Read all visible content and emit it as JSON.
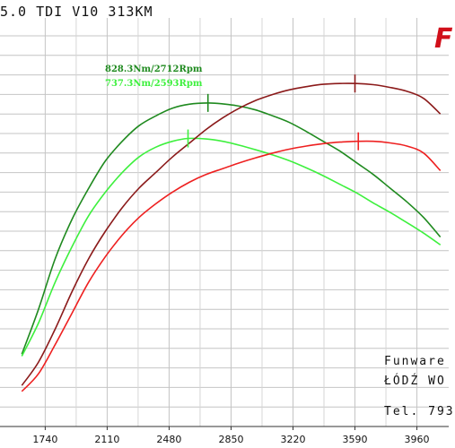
{
  "header": {
    "title": "5.0 TDI V10 313KM",
    "logo_text": "F"
  },
  "footer": {
    "company": "Funware",
    "location": "ŁÓDŹ WO",
    "phone": "Tel. 793"
  },
  "chart_data": {
    "type": "line",
    "title": "5.0 TDI V10 313KM",
    "xlabel": "",
    "ylabel": "",
    "x_ticks": [
      1740,
      2110,
      2480,
      2850,
      3220,
      3590,
      3960
    ],
    "xlim": [
      1470,
      4150
    ],
    "ylim": [
      0,
      1000
    ],
    "grid": true,
    "colors": {
      "tuned_torque": "#1f8a1f",
      "stock_torque": "#3ef03e",
      "tuned_power": "#8b1a1a",
      "stock_power": "#ee2020"
    },
    "annotations": [
      {
        "label": "828.3Nm/2712Rpm",
        "x": 2712,
        "y": 828.3,
        "color": "#1f8a1f"
      },
      {
        "label": "737.3Nm/2593Rpm",
        "x": 2593,
        "y": 737.3,
        "color": "#3ef03e"
      }
    ],
    "series": [
      {
        "key": "tuned_torque",
        "x": [
          1600,
          1700,
          1800,
          1900,
          2000,
          2100,
          2200,
          2300,
          2400,
          2500,
          2600,
          2712,
          2800,
          2900,
          3000,
          3100,
          3200,
          3300,
          3400,
          3500,
          3600,
          3700,
          3800,
          3900,
          4000,
          4100
        ],
        "values": [
          185,
          300,
          430,
          530,
          610,
          680,
          730,
          770,
          795,
          815,
          825,
          828.3,
          826,
          820,
          810,
          795,
          778,
          755,
          730,
          705,
          675,
          645,
          610,
          575,
          535,
          485
        ]
      },
      {
        "key": "stock_torque",
        "x": [
          1600,
          1700,
          1800,
          1900,
          2000,
          2100,
          2200,
          2300,
          2400,
          2500,
          2593,
          2700,
          2800,
          2900,
          3000,
          3100,
          3200,
          3300,
          3400,
          3500,
          3600,
          3700,
          3800,
          3900,
          4000,
          4100
        ],
        "values": [
          180,
          265,
          370,
          460,
          540,
          600,
          650,
          690,
          715,
          730,
          737.3,
          736,
          730,
          720,
          708,
          695,
          680,
          662,
          642,
          620,
          598,
          572,
          548,
          522,
          495,
          465
        ]
      },
      {
        "key": "tuned_power",
        "x": [
          1600,
          1700,
          1800,
          1900,
          2000,
          2100,
          2200,
          2300,
          2400,
          2500,
          2600,
          2700,
          2800,
          2900,
          3000,
          3100,
          3200,
          3300,
          3400,
          3500,
          3600,
          3700,
          3800,
          3900,
          4000,
          4100
        ],
        "values": [
          105,
          165,
          250,
          345,
          430,
          500,
          560,
          610,
          650,
          690,
          725,
          760,
          790,
          815,
          835,
          850,
          862,
          870,
          876,
          878,
          878,
          875,
          868,
          858,
          840,
          800
        ]
      },
      {
        "key": "stock_power",
        "x": [
          1600,
          1700,
          1800,
          1900,
          2000,
          2100,
          2200,
          2300,
          2400,
          2500,
          2600,
          2700,
          2800,
          2900,
          3000,
          3100,
          3200,
          3300,
          3400,
          3500,
          3600,
          3700,
          3800,
          3900,
          4000,
          4100
        ],
        "values": [
          90,
          135,
          210,
          290,
          370,
          435,
          490,
          535,
          570,
          600,
          625,
          645,
          660,
          675,
          688,
          700,
          710,
          718,
          724,
          728,
          730,
          730,
          726,
          718,
          700,
          655
        ]
      }
    ],
    "peak_markers": [
      {
        "series": "tuned_torque",
        "x": 2712
      },
      {
        "series": "stock_torque",
        "x": 2593
      },
      {
        "series": "tuned_power",
        "x": 3590
      },
      {
        "series": "stock_power",
        "x": 3610
      }
    ]
  }
}
